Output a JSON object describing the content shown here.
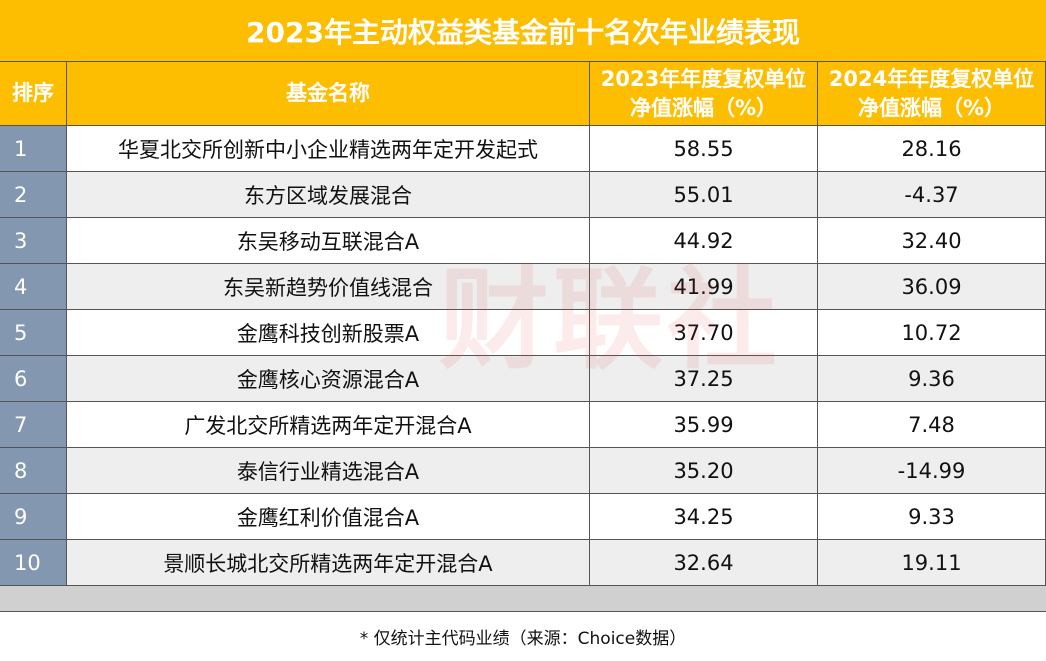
{
  "title": "2023年主动权益类基金前十名次年业绩表现",
  "table": {
    "header": [
      "排序",
      "基金名称",
      "2023年年度复权单位净值涨幅（%）",
      "2024年年度复权单位净值涨幅（%）"
    ],
    "rows": [
      [
        "1",
        "华夏北交所创新中小企业精选两年定开发起式",
        "58.55",
        "28.16"
      ],
      [
        "2",
        "东方区域发展混合",
        "55.01",
        "-4.37"
      ],
      [
        "3",
        "东吴移动互联混合A",
        "44.92",
        "32.40"
      ],
      [
        "4",
        "东吴新趋势价值线混合",
        "41.99",
        "36.09"
      ],
      [
        "5",
        "金鹰科技创新股票A",
        "37.70",
        "10.72"
      ],
      [
        "6",
        "金鹰核心资源混合A",
        "37.25",
        "9.36"
      ],
      [
        "7",
        "广发北交所精选两年定开混合A",
        "35.99",
        "7.48"
      ],
      [
        "8",
        "泰信行业精选混合A",
        "35.20",
        "-14.99"
      ],
      [
        "9",
        "金鹰红利价值混合A",
        "34.25",
        "9.33"
      ],
      [
        "10",
        "景顺长城北交所精选两年定开混合A",
        "32.64",
        "19.11"
      ]
    ]
  },
  "watermark": "财联社",
  "footnote": "* 仅统计主代码业绩（来源：Choice数据）"
}
